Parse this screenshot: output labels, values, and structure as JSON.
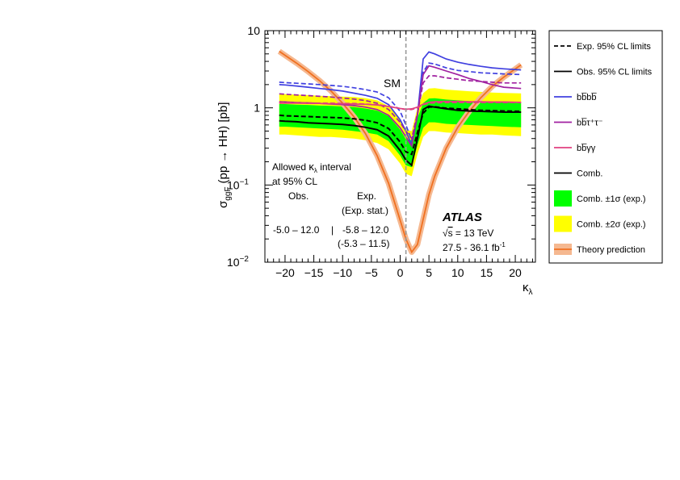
{
  "chart_data": {
    "type": "line",
    "xlabel": "κ",
    "xlabel_sub": "λ",
    "ylabel_sigma": "σ",
    "ylabel_sub": "ggF",
    "ylabel_rest": "(pp → HH) [pb]",
    "xlim": [
      -23.5,
      23.5
    ],
    "ylim": [
      0.01,
      10
    ],
    "y_scale": "log",
    "x_ticks": [
      -20,
      -15,
      -10,
      -5,
      0,
      5,
      10,
      15,
      20
    ],
    "x_tick_labels": [
      "−20",
      "−15",
      "−10",
      "−5",
      "0",
      "5",
      "10",
      "15",
      "20"
    ],
    "y_ticks": [
      {
        "value": 10,
        "base": "10",
        "exp": ""
      },
      {
        "value": 1,
        "base": "1",
        "exp": ""
      },
      {
        "value": 0.1,
        "base": "10",
        "exp": "−1"
      },
      {
        "value": 0.01,
        "base": "10",
        "exp": "−2"
      }
    ],
    "sm_line": {
      "x": 1,
      "label": "SM"
    },
    "annotations": {
      "interval_title_1": "Allowed ",
      "interval_kappa": "κ",
      "interval_sub": "λ",
      "interval_title_2": " interval",
      "interval_cl": "at 95% CL",
      "obs_header": "Obs.",
      "exp_header": "Exp.",
      "exp_stat_header": "(Exp. stat.)",
      "obs_range": "-5.0 – 12.0",
      "separator": "|",
      "exp_range": "-5.8 – 12.0",
      "exp_stat_range": "(-5.3 – 11.5)",
      "experiment": "ATLAS",
      "energy_sqrt": "s",
      "energy_rest": " = 13 TeV",
      "lumi": "27.5 - 36.1 fb",
      "lumi_exp": "-1"
    },
    "legend_position": "right, outside",
    "legend": [
      {
        "key": "exp",
        "label": "Exp. 95% CL limits"
      },
      {
        "key": "obs",
        "label": "Obs. 95% CL limits"
      },
      {
        "key": "bbbb",
        "label": "bb̅bb̅"
      },
      {
        "key": "bbtautau",
        "label": "bb̅τ⁺τ⁻"
      },
      {
        "key": "bbyy",
        "label": "bb̅γγ"
      },
      {
        "key": "comb",
        "label": "Comb."
      },
      {
        "key": "band1",
        "label": "Comb. ±1σ (exp.)"
      },
      {
        "key": "band2",
        "label": "Comb. ±2σ (exp.)"
      },
      {
        "key": "theory",
        "label": "Theory prediction"
      }
    ],
    "colors": {
      "bbbb": "#4040e0",
      "bbtautau": "#a020a0",
      "bbyy": "#e04080",
      "comb": "#000000",
      "band1": "#00ff00",
      "band2": "#ffff00",
      "theory": "#f07020",
      "theory_band": "#f5b890",
      "sm": "#999999"
    },
    "x": [
      -21,
      -20,
      -18,
      -16,
      -14,
      -12,
      -10,
      -8,
      -6,
      -4,
      -2,
      0,
      1,
      2,
      3,
      4,
      5,
      6,
      8,
      10,
      12,
      14,
      16,
      18,
      21
    ],
    "series": [
      {
        "key": "theory",
        "style": "solid",
        "values": [
          5.4,
          4.8,
          3.8,
          2.95,
          2.25,
          1.65,
          1.15,
          0.76,
          0.46,
          0.24,
          0.105,
          0.035,
          0.02,
          0.0135,
          0.017,
          0.036,
          0.075,
          0.13,
          0.3,
          0.56,
          0.9,
          1.35,
          1.9,
          2.5,
          3.6
        ]
      },
      {
        "key": "band2",
        "style": "band",
        "lower": [
          0.45,
          0.45,
          0.44,
          0.43,
          0.42,
          0.42,
          0.41,
          0.4,
          0.38,
          0.35,
          0.29,
          0.19,
          0.14,
          0.13,
          0.25,
          0.42,
          0.5,
          0.5,
          0.48,
          0.47,
          0.46,
          0.45,
          0.45,
          0.44,
          0.43
        ],
        "upper": [
          1.5,
          1.5,
          1.48,
          1.46,
          1.43,
          1.42,
          1.4,
          1.38,
          1.33,
          1.25,
          1.05,
          0.7,
          0.52,
          0.5,
          1.0,
          1.55,
          1.78,
          1.8,
          1.72,
          1.68,
          1.64,
          1.61,
          1.58,
          1.56,
          1.54
        ]
      },
      {
        "key": "band1",
        "style": "band",
        "lower": [
          0.57,
          0.57,
          0.56,
          0.55,
          0.54,
          0.53,
          0.52,
          0.5,
          0.48,
          0.45,
          0.37,
          0.24,
          0.18,
          0.17,
          0.33,
          0.55,
          0.65,
          0.65,
          0.62,
          0.61,
          0.6,
          0.59,
          0.58,
          0.57,
          0.56
        ],
        "upper": [
          1.12,
          1.12,
          1.1,
          1.09,
          1.07,
          1.06,
          1.04,
          1.02,
          0.98,
          0.92,
          0.78,
          0.52,
          0.39,
          0.38,
          0.74,
          1.15,
          1.32,
          1.33,
          1.28,
          1.25,
          1.22,
          1.2,
          1.18,
          1.17,
          1.15
        ]
      },
      {
        "key": "bbbb",
        "style": "dashed",
        "values": [
          2.15,
          2.12,
          2.08,
          2.04,
          2.0,
          1.95,
          1.9,
          1.82,
          1.72,
          1.6,
          1.35,
          0.9,
          0.6,
          0.38,
          0.8,
          2.9,
          3.8,
          3.7,
          3.3,
          3.05,
          2.95,
          2.85,
          2.8,
          2.75,
          2.7
        ]
      },
      {
        "key": "bbbb",
        "style": "solid",
        "values": [
          2.0,
          1.98,
          1.92,
          1.85,
          1.78,
          1.72,
          1.65,
          1.55,
          1.45,
          1.33,
          1.1,
          0.7,
          0.5,
          0.33,
          0.8,
          4.3,
          5.3,
          5.0,
          4.3,
          3.9,
          3.65,
          3.45,
          3.3,
          3.2,
          3.1
        ]
      },
      {
        "key": "bbtautau",
        "style": "dashed",
        "values": [
          1.52,
          1.5,
          1.47,
          1.44,
          1.41,
          1.38,
          1.34,
          1.3,
          1.24,
          1.15,
          0.95,
          0.65,
          0.5,
          0.4,
          0.85,
          2.1,
          2.6,
          2.6,
          2.45,
          2.35,
          2.25,
          2.2,
          2.15,
          2.1,
          2.1
        ]
      },
      {
        "key": "bbtautau",
        "style": "solid",
        "values": [
          1.2,
          1.19,
          1.17,
          1.16,
          1.14,
          1.12,
          1.1,
          1.07,
          1.02,
          0.95,
          0.8,
          0.55,
          0.42,
          0.32,
          0.8,
          2.7,
          3.5,
          3.35,
          3.0,
          2.7,
          2.4,
          2.2,
          2.0,
          1.85,
          1.78
        ]
      },
      {
        "key": "bbyy",
        "style": "dashed",
        "values": [
          1.17,
          1.17,
          1.16,
          1.16,
          1.15,
          1.15,
          1.14,
          1.14,
          1.12,
          1.1,
          1.05,
          0.98,
          0.95,
          0.95,
          1.0,
          1.1,
          1.15,
          1.16,
          1.17,
          1.17,
          1.17,
          1.17,
          1.17,
          1.17,
          1.17
        ]
      },
      {
        "key": "bbyy",
        "style": "solid",
        "values": [
          1.15,
          1.15,
          1.15,
          1.14,
          1.14,
          1.13,
          1.13,
          1.12,
          1.11,
          1.09,
          1.04,
          0.98,
          0.96,
          0.97,
          1.02,
          1.12,
          1.18,
          1.2,
          1.21,
          1.21,
          1.2,
          1.2,
          1.19,
          1.19,
          1.18
        ]
      },
      {
        "key": "comb",
        "style": "dashed",
        "values": [
          0.8,
          0.79,
          0.78,
          0.77,
          0.76,
          0.75,
          0.74,
          0.72,
          0.69,
          0.64,
          0.54,
          0.36,
          0.27,
          0.25,
          0.48,
          0.85,
          1.02,
          1.03,
          0.99,
          0.97,
          0.95,
          0.93,
          0.92,
          0.91,
          0.9
        ]
      },
      {
        "key": "comb",
        "style": "solid",
        "values": [
          0.68,
          0.67,
          0.66,
          0.64,
          0.63,
          0.62,
          0.61,
          0.59,
          0.56,
          0.52,
          0.43,
          0.28,
          0.21,
          0.18,
          0.4,
          0.95,
          1.05,
          1.02,
          0.97,
          0.93,
          0.91,
          0.9,
          0.89,
          0.88,
          0.88
        ]
      }
    ]
  }
}
